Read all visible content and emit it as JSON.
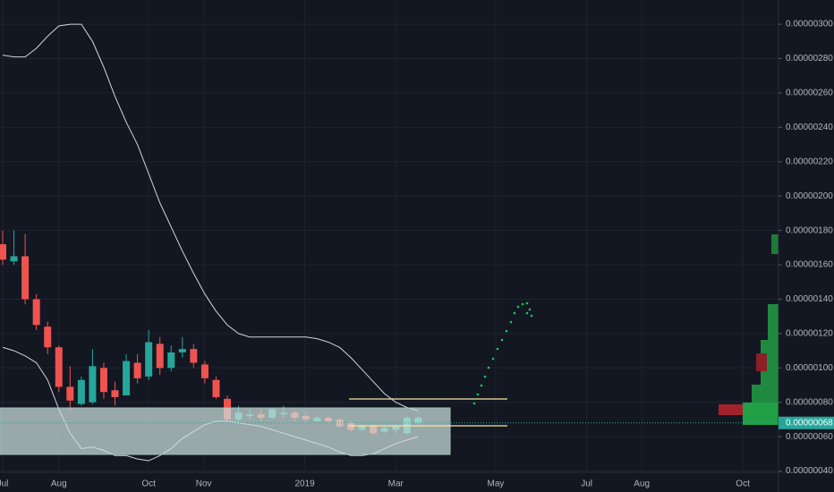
{
  "chart_data": {
    "type": "candlestick",
    "categories": [
      null,
      null,
      null,
      null,
      null,
      null,
      null,
      null,
      null,
      null,
      null,
      null,
      null,
      null,
      null,
      null,
      null,
      null,
      null,
      null,
      null,
      null,
      null,
      null,
      null,
      null,
      null,
      null,
      null,
      null,
      null,
      null,
      null,
      null,
      null,
      null,
      null,
      null
    ],
    "open": [
      1.72e-06,
      1.62e-06,
      1.65e-06,
      1.4e-06,
      1.24e-06,
      1.12e-06,
      8.9e-07,
      7.9e-07,
      8e-07,
      1e-06,
      8.7e-07,
      8.4e-07,
      1.03e-06,
      9.5e-07,
      1.14e-06,
      1e-06,
      1.09e-06,
      1.11e-06,
      1.02e-06,
      9.3e-07,
      8.2e-07,
      7e-07,
      7.2e-07,
      7.3e-07,
      7.1e-07,
      7.3e-07,
      7.4e-07,
      7.2e-07,
      6.9e-07,
      7.1e-07,
      7e-07,
      6.8e-07,
      6.4e-07,
      6.6e-07,
      6.3e-07,
      6.4e-07,
      6.2e-07,
      6.8e-07
    ],
    "high": [
      1.8e-06,
      1.8e-06,
      1.78e-06,
      1.43e-06,
      1.27e-06,
      1.13e-06,
      1.01e-06,
      9.5e-07,
      1.11e-06,
      1.03e-06,
      9.2e-07,
      1.08e-06,
      1.08e-06,
      1.22e-06,
      1.18e-06,
      1.13e-06,
      1.18e-06,
      1.14e-06,
      1.04e-06,
      9.5e-07,
      8.4e-07,
      7.8e-07,
      7.6e-07,
      7.6e-07,
      7.7e-07,
      7.8e-07,
      7.5e-07,
      7.4e-07,
      7.2e-07,
      7.2e-07,
      7.1e-07,
      6.9e-07,
      6.7e-07,
      6.7e-07,
      6.6e-07,
      6.7e-07,
      7.2e-07,
      7.2e-07
    ],
    "low": [
      1.6e-06,
      1.6e-06,
      1.37e-06,
      1.22e-06,
      1.08e-06,
      8.6e-07,
      7.5e-07,
      7.8e-07,
      7.9e-07,
      8.2e-07,
      7.8e-07,
      8.4e-07,
      9.1e-07,
      9.3e-07,
      9.6e-07,
      9.8e-07,
      1.06e-06,
      1e-06,
      9.1e-07,
      8.2e-07,
      6.9e-07,
      6.8e-07,
      7e-07,
      6.9e-07,
      7e-07,
      7.1e-07,
      6.9e-07,
      6.8e-07,
      6.8e-07,
      6.7e-07,
      6.5e-07,
      6.3e-07,
      6.3e-07,
      6.1e-07,
      6.2e-07,
      6.2e-07,
      6.1e-07,
      6.7e-07
    ],
    "close": [
      1.63e-06,
      1.65e-06,
      1.4e-06,
      1.25e-06,
      1.12e-06,
      8.9e-07,
      8.1e-07,
      9.3e-07,
      1.01e-06,
      8.6e-07,
      8.3e-07,
      1.04e-06,
      9.4e-07,
      1.15e-06,
      1e-06,
      1.09e-06,
      1.11e-06,
      1.03e-06,
      9.4e-07,
      8.3e-07,
      7e-07,
      7.4e-07,
      7.3e-07,
      7.1e-07,
      7.6e-07,
      7.4e-07,
      7.1e-07,
      7e-07,
      7.1e-07,
      6.9e-07,
      6.6e-07,
      6.4e-07,
      6.6e-07,
      6.2e-07,
      6.5e-07,
      6.6e-07,
      7.1e-07,
      7.1e-07
    ],
    "up_color": "#26a69a",
    "down_color": "#ef5350",
    "bands": {
      "color": "#d1d4dc",
      "upper": [
        2.82e-06,
        2.81e-06,
        2.81e-06,
        2.86e-06,
        2.93e-06,
        2.99e-06,
        3e-06,
        3e-06,
        2.9e-06,
        2.75e-06,
        2.58e-06,
        2.43e-06,
        2.3e-06,
        2.13e-06,
        1.96e-06,
        1.82e-06,
        1.68e-06,
        1.55e-06,
        1.43e-06,
        1.33e-06,
        1.25e-06,
        1.2e-06,
        1.18e-06,
        1.18e-06,
        1.18e-06,
        1.18e-06,
        1.18e-06,
        1.18e-06,
        1.17e-06,
        1.15e-06,
        1.12e-06,
        1.06e-06,
        9.9e-07,
        9.2e-07,
        8.5e-07,
        8e-07,
        7.7e-07,
        7.5e-07
      ],
      "lower": [
        1.12e-06,
        1.1e-06,
        1.07e-06,
        1.03e-06,
        9.3e-07,
        7.6e-07,
        6.2e-07,
        5.3e-07,
        5.4e-07,
        5.2e-07,
        4.9e-07,
        4.9e-07,
        4.7e-07,
        4.6e-07,
        4.9e-07,
        5.3e-07,
        5.9e-07,
        6.3e-07,
        6.7e-07,
        6.9e-07,
        6.9e-07,
        6.8e-07,
        6.7e-07,
        6.6e-07,
        6.4e-07,
        6.2e-07,
        6e-07,
        5.8e-07,
        5.6e-07,
        5.4e-07,
        5.1e-07,
        4.9e-07,
        4.9e-07,
        5e-07,
        5.3e-07,
        5.6e-07,
        5.8e-07,
        6e-07
      ]
    },
    "last_price": {
      "value": 6.8e-07,
      "label": "0.00000068"
    },
    "xlim": [
      -0.24,
      69.08
    ],
    "xticks": [
      {
        "value": 0,
        "label": "Jul"
      },
      {
        "value": 5.0,
        "label": "Aug"
      },
      {
        "value": 13.0,
        "label": "Oct"
      },
      {
        "value": 17.9,
        "label": "Nov"
      },
      {
        "value": 26.9,
        "label": "2019"
      },
      {
        "value": 35.0,
        "label": "Mar"
      },
      {
        "value": 43.9,
        "label": "May"
      },
      {
        "value": 52.0,
        "label": "Jul"
      },
      {
        "value": 56.9,
        "label": "Aug"
      },
      {
        "value": 65.9,
        "label": "Oct"
      }
    ],
    "ylim": [
      3.925e-07,
      3.141e-06
    ],
    "yticks": [
      {
        "value": 4e-07,
        "label": "0.00000040"
      },
      {
        "value": 6e-07,
        "label": "0.00000060"
      },
      {
        "value": 8e-07,
        "label": "0.00000080"
      },
      {
        "value": 1e-06,
        "label": "0.00000100"
      },
      {
        "value": 1.2e-06,
        "label": "0.00000120"
      },
      {
        "value": 1.4e-06,
        "label": "0.00000140"
      },
      {
        "value": 1.6e-06,
        "label": "0.00000160"
      },
      {
        "value": 1.8e-06,
        "label": "0.00000180"
      },
      {
        "value": 2e-06,
        "label": "0.00000200"
      },
      {
        "value": 2.2e-06,
        "label": "0.00000220"
      },
      {
        "value": 2.4e-06,
        "label": "0.00000240"
      },
      {
        "value": 2.6e-06,
        "label": "0.00000260"
      },
      {
        "value": 2.8e-06,
        "label": "0.00000280"
      },
      {
        "value": 3e-06,
        "label": "0.00000300"
      }
    ],
    "grid": true
  }
}
